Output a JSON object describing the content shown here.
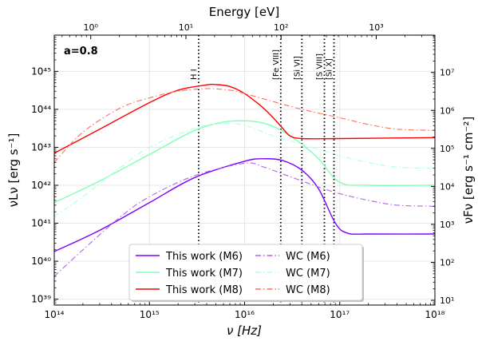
{
  "chart_data": {
    "type": "line",
    "annotation": "a=0.8",
    "xlabel": "ν [Hz]",
    "ylabel_left": "νLν [erg s⁻¹]",
    "ylabel_right": "νFν [erg s⁻¹ cm⁻²]",
    "top_axis_label": "Energy [eV]",
    "x_scale": "log",
    "y_scale": "log",
    "xlim": [
      100000000000000.0,
      1e+18
    ],
    "ylim_left": [
      7e+38,
      9e+45
    ],
    "ylim_right": [
      7.5,
      96000000.0
    ],
    "grid": true,
    "legend_position": "bottom-center",
    "x_ticks": [
      {
        "value": 100000000000000.0,
        "label": "10¹⁴"
      },
      {
        "value": 1000000000000000.0,
        "label": "10¹⁵"
      },
      {
        "value": 1e+16,
        "label": "10¹⁶"
      },
      {
        "value": 1e+17,
        "label": "10¹⁷"
      },
      {
        "value": 1e+18,
        "label": "10¹⁸"
      }
    ],
    "y_ticks_left": [
      {
        "value": 1e+39,
        "label": "10³⁹"
      },
      {
        "value": 1e+40,
        "label": "10⁴⁰"
      },
      {
        "value": 1e+41,
        "label": "10⁴¹"
      },
      {
        "value": 1e+42,
        "label": "10⁴²"
      },
      {
        "value": 1e+43,
        "label": "10⁴³"
      },
      {
        "value": 1e+44,
        "label": "10⁴⁴"
      },
      {
        "value": 1e+45,
        "label": "10⁴⁵"
      }
    ],
    "y_ticks_right": [
      {
        "value": 10.0,
        "label": "10¹"
      },
      {
        "value": 100.0,
        "label": "10²"
      },
      {
        "value": 1000.0,
        "label": "10³"
      },
      {
        "value": 10000.0,
        "label": "10⁴"
      },
      {
        "value": 100000.0,
        "label": "10⁵"
      },
      {
        "value": 1000000.0,
        "label": "10⁶"
      },
      {
        "value": 10000000.0,
        "label": "10⁷"
      }
    ],
    "top_ticks": [
      {
        "value": 1,
        "label": "10⁰"
      },
      {
        "value": 10,
        "label": "10¹"
      },
      {
        "value": 100,
        "label": "10²"
      },
      {
        "value": 1000,
        "label": "10³"
      }
    ],
    "vlines": [
      {
        "label": "H I",
        "nu": 3290000000000000.0
      },
      {
        "label": "[Fe VIII]",
        "nu": 2.4e+16
      },
      {
        "label": "[Si VI]",
        "nu": 4e+16
      },
      {
        "label": "[S VIII]",
        "nu": 6.9e+16
      },
      {
        "label": "[Si X]",
        "nu": 8.7e+16
      }
    ],
    "series": [
      {
        "name": "This work (M6)",
        "color": "#7f00ff",
        "style": "solid",
        "x": [
          100000000000000.0,
          300000000000000.0,
          1000000000000000.0,
          3000000000000000.0,
          1e+16,
          1.6e+16,
          2.5e+16,
          4e+16,
          6e+16,
          9e+16,
          1.2e+17,
          2e+17,
          1e+18
        ],
        "y": [
          1.8e+40,
          6.5e+40,
          3.5e+41,
          1.6e+42,
          4.3e+42,
          5e+42,
          4.5e+42,
          2.5e+42,
          8e+41,
          1e+41,
          5.5e+40,
          5.2e+40,
          5.2e+40
        ]
      },
      {
        "name": "This work (M7)",
        "color": "#80ffb4",
        "style": "solid",
        "x": [
          100000000000000.0,
          300000000000000.0,
          1000000000000000.0,
          3000000000000000.0,
          6000000000000000.0,
          1e+16,
          1.6e+16,
          2.5e+16,
          4e+16,
          6e+16,
          1e+17,
          2e+17,
          1e+18
        ],
        "y": [
          3.5e+41,
          1.3e+42,
          6.5e+42,
          2.8e+43,
          4.6e+43,
          5e+43,
          4.3e+43,
          2.7e+43,
          1.2e+43,
          5e+42,
          1.2e+42,
          1e+42,
          1e+42
        ]
      },
      {
        "name": "This work (M8)",
        "color": "#ff0000",
        "style": "solid",
        "x": [
          100000000000000.0,
          300000000000000.0,
          1000000000000000.0,
          2000000000000000.0,
          4000000000000000.0,
          5000000000000000.0,
          7000000000000000.0,
          1e+16,
          1.5e+16,
          2e+16,
          2.5e+16,
          3e+16,
          4e+16,
          1e+17,
          1e+18
        ],
        "y": [
          7e+42,
          3e+43,
          1.5e+44,
          3.2e+44,
          4.4e+44,
          4.5e+44,
          4e+44,
          2.6e+44,
          1.2e+44,
          6e+43,
          3.2e+43,
          2e+43,
          1.7e+43,
          1.7e+43,
          1.8e+43
        ]
      },
      {
        "name": "WC (M6)",
        "color": "#b266e6",
        "style": "dashdot",
        "x": [
          100000000000000.0,
          200000000000000.0,
          500000000000000.0,
          1000000000000000.0,
          3000000000000000.0,
          1e+16,
          1.6e+16,
          2.5e+16,
          4e+16,
          6e+16,
          1e+17,
          2e+17,
          4e+17,
          1e+18
        ],
        "y": [
          4e+39,
          2e+40,
          1.5e+41,
          5e+41,
          1.8e+42,
          3.8e+42,
          3e+42,
          2e+42,
          1.3e+42,
          9e+41,
          6e+41,
          4e+41,
          3e+41,
          2.8e+41
        ]
      },
      {
        "name": "WC (M7)",
        "color": "#b3ffe6",
        "style": "dashdot",
        "x": [
          100000000000000.0,
          200000000000000.0,
          500000000000000.0,
          1000000000000000.0,
          3000000000000000.0,
          6000000000000000.0,
          1e+16,
          2e+16,
          4e+16,
          1e+17,
          2e+17,
          4e+17,
          1e+18
        ],
        "y": [
          1.5e+41,
          5e+41,
          3e+42,
          1e+43,
          3.2e+43,
          4.2e+43,
          3.8e+43,
          2e+43,
          1.2e+43,
          6e+42,
          4e+42,
          3e+42,
          2.8e+42
        ]
      },
      {
        "name": "WC (M8)",
        "color": "#ff6f61",
        "style": "dashdot",
        "x": [
          100000000000000.0,
          200000000000000.0,
          500000000000000.0,
          1000000000000000.0,
          2000000000000000.0,
          4000000000000000.0,
          7000000000000000.0,
          1e+16,
          2e+16,
          4e+16,
          1e+17,
          2e+17,
          4e+17,
          1e+18
        ],
        "y": [
          4e+42,
          2.5e+43,
          1.1e+44,
          2e+44,
          3e+44,
          3.5e+44,
          3.2e+44,
          2.6e+44,
          1.6e+44,
          1e+44,
          6e+43,
          4e+43,
          3e+43,
          2.8e+43
        ]
      }
    ]
  }
}
